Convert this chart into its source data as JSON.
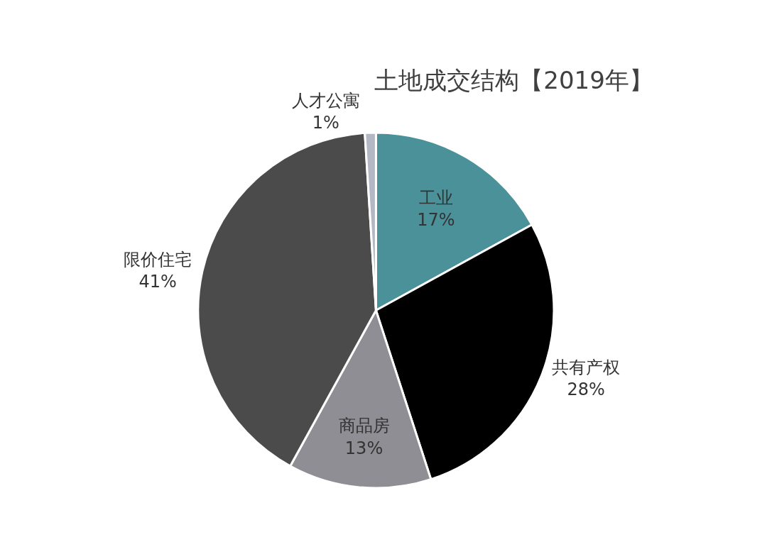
{
  "chart_data": {
    "type": "pie",
    "title": "土地成交结构【2019年】",
    "categories": [
      "工业",
      "共有产权",
      "商品房",
      "限价住宅",
      "人才公寓"
    ],
    "values": [
      17,
      28,
      13,
      41,
      1
    ],
    "value_labels": [
      "17%",
      "28%",
      "13%",
      "41%",
      "1%"
    ],
    "colors": [
      "#4a9199",
      "#000000",
      "#8e8e94",
      "#4b4b4b",
      "#b4b8c4"
    ],
    "legend": false
  }
}
